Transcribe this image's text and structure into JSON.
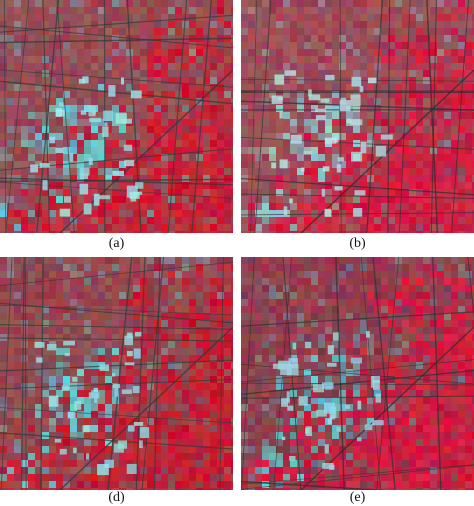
{
  "panels": [
    {
      "id": "a",
      "caption": "(a)",
      "image": "false-color-satellite-image",
      "palette": {
        "vegetation": "#d8112c",
        "urban": "#5fd8e0",
        "soil": "#8a5a5e",
        "roads": "#2c3a3c"
      }
    },
    {
      "id": "b",
      "caption": "(b)",
      "image": "false-color-satellite-image",
      "palette": {
        "vegetation": "#e0123a",
        "urban": "#8fd6d8",
        "soil": "#8d5a60",
        "roads": "#2a2f32"
      }
    },
    {
      "id": "d",
      "caption": "(d)",
      "image": "false-color-satellite-image",
      "palette": {
        "vegetation": "#d4102a",
        "urban": "#62d0da",
        "soil": "#865458",
        "roads": "#2d3a3b"
      }
    },
    {
      "id": "e",
      "caption": "(e)",
      "image": "false-color-satellite-image",
      "palette": {
        "vegetation": "#e0143c",
        "urban": "#5ec8d2",
        "soil": "#7e4a52",
        "roads": "#2a3032"
      }
    }
  ]
}
